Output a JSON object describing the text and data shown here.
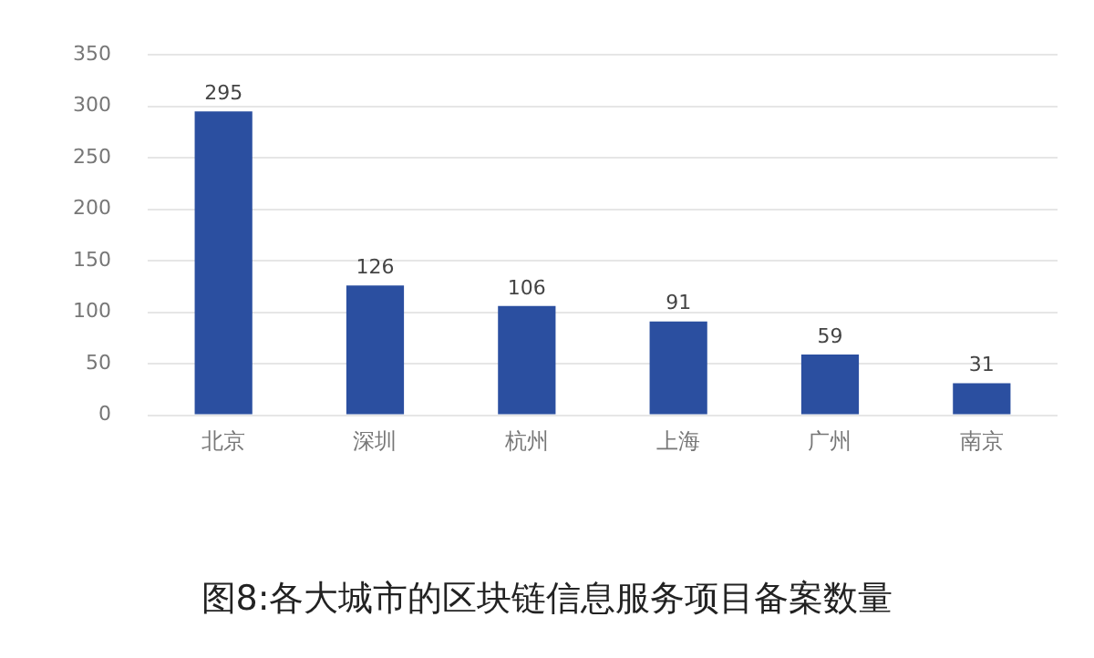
{
  "chart_data": {
    "type": "bar",
    "title": "图8:各大城市的区块链信息服务项目备案数量",
    "categories": [
      "北京",
      "深圳",
      "杭州",
      "上海",
      "广州",
      "南京"
    ],
    "values": [
      295,
      126,
      106,
      91,
      59,
      31
    ],
    "color": "#2b4fa0",
    "ylim": [
      0,
      350
    ],
    "yticks": [
      0,
      50,
      100,
      150,
      200,
      250,
      300,
      350
    ],
    "grid": "y",
    "data_labels": true,
    "legend": false
  }
}
